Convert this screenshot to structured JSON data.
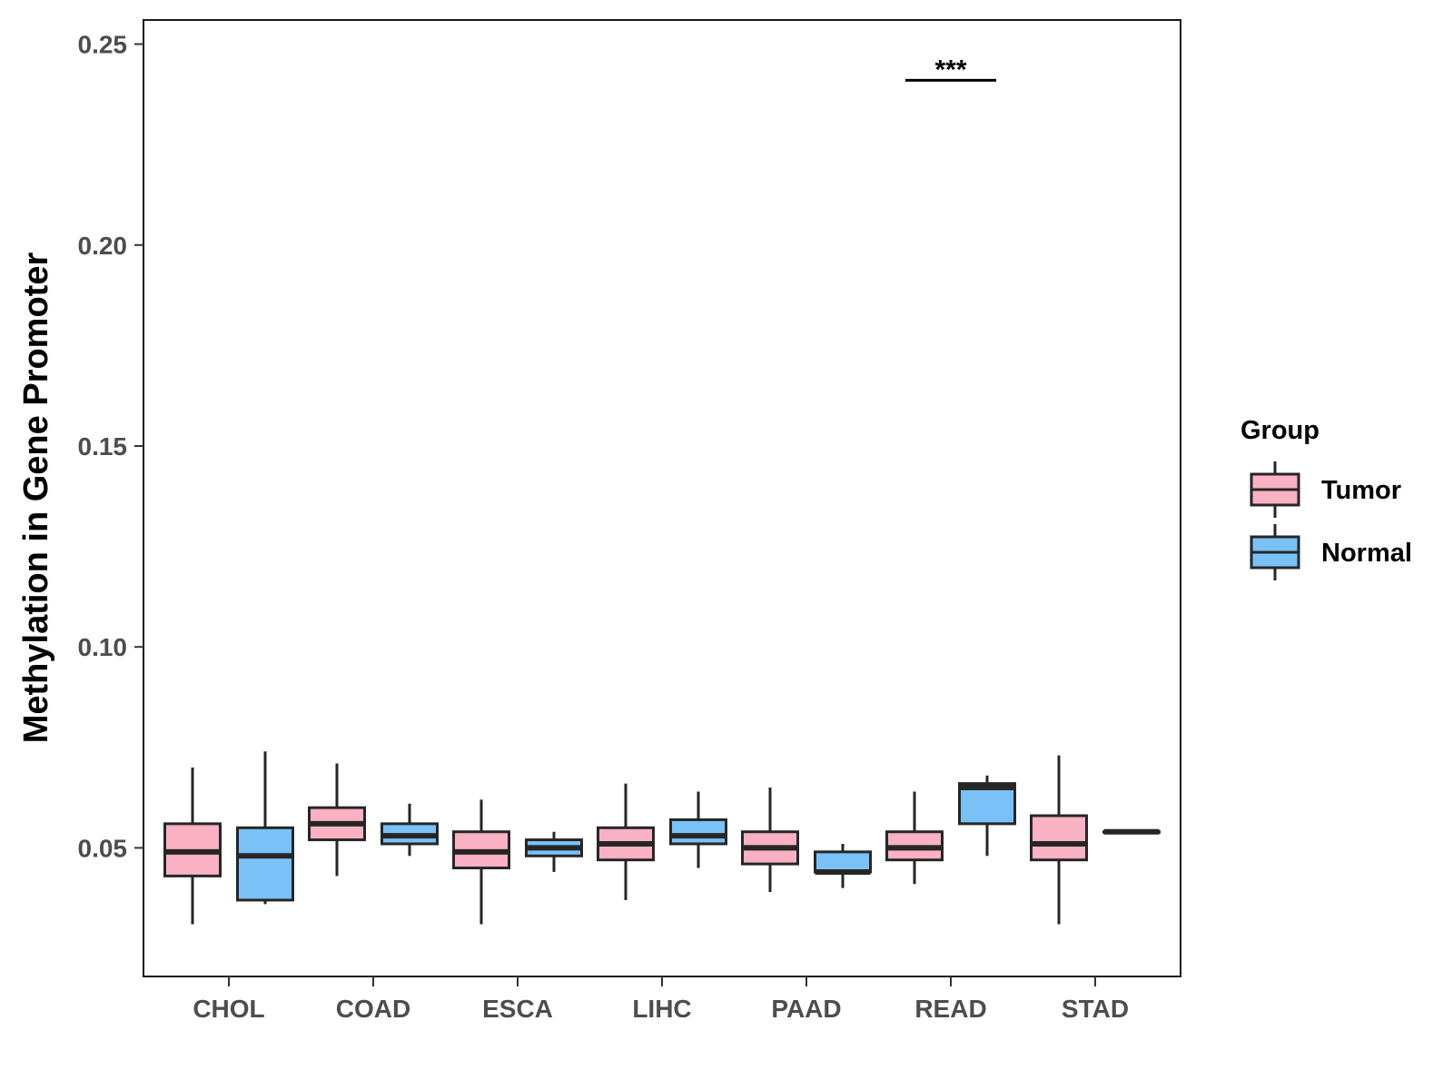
{
  "chart_data": {
    "type": "boxplot",
    "title": "",
    "xlabel": "",
    "ylabel": "Methylation in Gene Promoter",
    "ylim": [
      0.018,
      0.256
    ],
    "yticks": [
      0.05,
      0.1,
      0.15,
      0.2,
      0.25
    ],
    "ytick_labels": [
      "0.05",
      "0.10",
      "0.15",
      "0.20",
      "0.25"
    ],
    "grid": false,
    "legend": {
      "title": "Group",
      "position": "right",
      "entries": [
        "Tumor",
        "Normal"
      ]
    },
    "categories": [
      "CHOL",
      "COAD",
      "ESCA",
      "LIHC",
      "PAAD",
      "READ",
      "STAD"
    ],
    "series": [
      {
        "name": "Tumor",
        "color": "#f9b1c3",
        "boxes": [
          {
            "min": 0.031,
            "q1": 0.043,
            "median": 0.049,
            "q3": 0.056,
            "max": 0.07
          },
          {
            "min": 0.043,
            "q1": 0.052,
            "median": 0.056,
            "q3": 0.06,
            "max": 0.071
          },
          {
            "min": 0.031,
            "q1": 0.045,
            "median": 0.049,
            "q3": 0.054,
            "max": 0.062
          },
          {
            "min": 0.037,
            "q1": 0.047,
            "median": 0.051,
            "q3": 0.055,
            "max": 0.066
          },
          {
            "min": 0.039,
            "q1": 0.046,
            "median": 0.05,
            "q3": 0.054,
            "max": 0.065
          },
          {
            "min": 0.041,
            "q1": 0.047,
            "median": 0.05,
            "q3": 0.054,
            "max": 0.064
          },
          {
            "min": 0.031,
            "q1": 0.047,
            "median": 0.051,
            "q3": 0.058,
            "max": 0.073
          }
        ]
      },
      {
        "name": "Normal",
        "color": "#79c1f7",
        "boxes": [
          {
            "min": 0.036,
            "q1": 0.037,
            "median": 0.048,
            "q3": 0.055,
            "max": 0.074
          },
          {
            "min": 0.048,
            "q1": 0.051,
            "median": 0.053,
            "q3": 0.056,
            "max": 0.061
          },
          {
            "min": 0.044,
            "q1": 0.048,
            "median": 0.05,
            "q3": 0.052,
            "max": 0.054
          },
          {
            "min": 0.045,
            "q1": 0.051,
            "median": 0.053,
            "q3": 0.057,
            "max": 0.064
          },
          {
            "min": 0.04,
            "q1": 0.044,
            "median": 0.044,
            "q3": 0.049,
            "max": 0.051
          },
          {
            "min": 0.048,
            "q1": 0.056,
            "median": 0.065,
            "q3": 0.066,
            "max": 0.068
          },
          {
            "min": 0.054,
            "q1": 0.054,
            "median": 0.054,
            "q3": 0.054,
            "max": 0.054
          }
        ]
      }
    ],
    "annotations": [
      {
        "text": "***",
        "category": "READ",
        "y": 0.241
      }
    ]
  }
}
